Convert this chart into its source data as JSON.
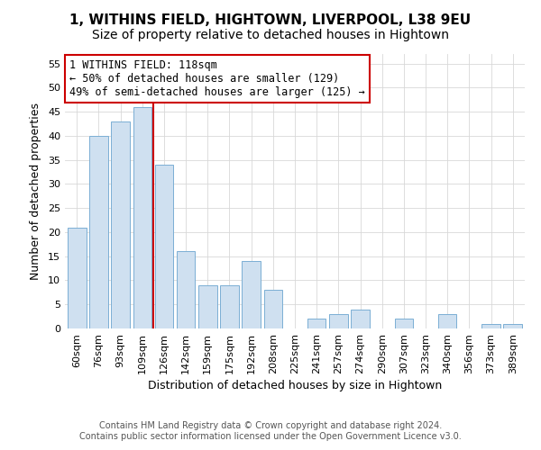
{
  "title": "1, WITHINS FIELD, HIGHTOWN, LIVERPOOL, L38 9EU",
  "subtitle": "Size of property relative to detached houses in Hightown",
  "xlabel": "Distribution of detached houses by size in Hightown",
  "ylabel": "Number of detached properties",
  "bar_labels": [
    "60sqm",
    "76sqm",
    "93sqm",
    "109sqm",
    "126sqm",
    "142sqm",
    "159sqm",
    "175sqm",
    "192sqm",
    "208sqm",
    "225sqm",
    "241sqm",
    "257sqm",
    "274sqm",
    "290sqm",
    "307sqm",
    "323sqm",
    "340sqm",
    "356sqm",
    "373sqm",
    "389sqm"
  ],
  "bar_values": [
    21,
    40,
    43,
    46,
    34,
    16,
    9,
    9,
    14,
    8,
    0,
    2,
    3,
    4,
    0,
    2,
    0,
    3,
    0,
    1,
    1
  ],
  "bar_color": "#cfe0f0",
  "bar_edge_color": "#7bafd4",
  "vline_x": 3.5,
  "vline_color": "#cc0000",
  "ylim": [
    0,
    57
  ],
  "yticks": [
    0,
    5,
    10,
    15,
    20,
    25,
    30,
    35,
    40,
    45,
    50,
    55
  ],
  "annotation_title": "1 WITHINS FIELD: 118sqm",
  "annotation_line1": "← 50% of detached houses are smaller (129)",
  "annotation_line2": "49% of semi-detached houses are larger (125) →",
  "annotation_box_color": "#ffffff",
  "annotation_box_edge": "#cc0000",
  "footer1": "Contains HM Land Registry data © Crown copyright and database right 2024.",
  "footer2": "Contains public sector information licensed under the Open Government Licence v3.0.",
  "background_color": "#ffffff",
  "grid_color": "#d8d8d8",
  "title_fontsize": 11,
  "subtitle_fontsize": 10,
  "axis_label_fontsize": 9,
  "tick_fontsize": 8,
  "annotation_fontsize": 8.5,
  "footer_fontsize": 7
}
